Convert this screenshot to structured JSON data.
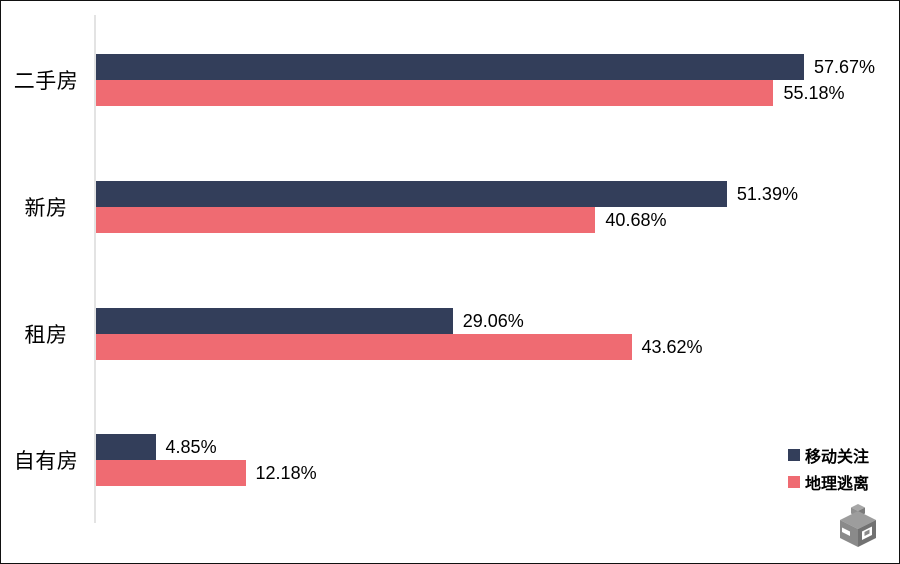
{
  "chart_data": {
    "type": "bar",
    "orientation": "horizontal",
    "title": "",
    "xlabel": "",
    "ylabel": "",
    "categories": [
      "二手房",
      "新房",
      "租房",
      "自有房"
    ],
    "series": [
      {
        "id": "mobile-focus",
        "name": "移动关注",
        "color": "#333E5A",
        "values": [
          57.67,
          51.39,
          29.06,
          4.85
        ],
        "labels": [
          "57.67%",
          "51.39%",
          "29.06%",
          "4.85%"
        ]
      },
      {
        "id": "geo-escape",
        "name": "地理逃离",
        "color": "#EF6B72",
        "values": [
          55.18,
          40.68,
          43.62,
          12.18
        ],
        "labels": [
          "55.18%",
          "40.68%",
          "43.62%",
          "12.18%"
        ]
      }
    ],
    "value_label_format": "{value}%",
    "xlim": [
      0,
      62
    ],
    "grid": false,
    "axis_line_color": "#E3E3E3",
    "background": "#FFFFFF",
    "text_color": "#000000",
    "legend_position": "bottom-right"
  },
  "watermark": {
    "icon": "isometric-cube-logo",
    "color": "#8F8F8F"
  }
}
